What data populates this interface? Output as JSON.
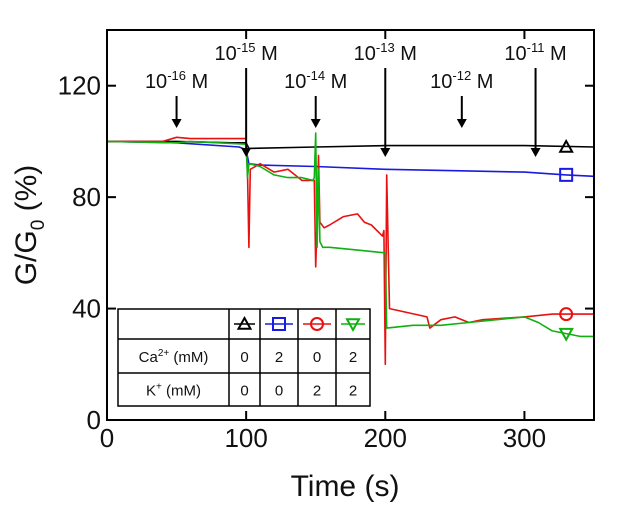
{
  "chart_data": {
    "type": "line",
    "title": "",
    "xlabel": "Time (s)",
    "ylabel_main": "G/G",
    "ylabel_sub": "0",
    "ylabel_unit": " (%)",
    "xlim": [
      0,
      350
    ],
    "ylim": [
      0,
      140
    ],
    "x_ticks": [
      0,
      100,
      200,
      300
    ],
    "y_ticks": [
      0,
      40,
      80,
      120
    ],
    "grid": false,
    "annotations": [
      {
        "base": "10",
        "exp": "-16",
        "unit": " M",
        "x": 50
      },
      {
        "base": "10",
        "exp": "-15",
        "unit": " M",
        "x": 100
      },
      {
        "base": "10",
        "exp": "-14",
        "unit": " M",
        "x": 150
      },
      {
        "base": "10",
        "exp": "-13",
        "unit": " M",
        "x": 200
      },
      {
        "base": "10",
        "exp": "-12",
        "unit": " M",
        "x": 255
      },
      {
        "base": "10",
        "exp": "-11",
        "unit": " M",
        "x": 308
      }
    ],
    "series": [
      {
        "color": "#000000",
        "marker": "triangle-up",
        "marker_x": 330,
        "x": [
          0,
          20,
          50,
          90,
          100,
          102,
          150,
          200,
          250,
          300,
          350
        ],
        "y": [
          100,
          100,
          100,
          99.5,
          99.5,
          97.5,
          98,
          98.5,
          98.5,
          98.5,
          98
        ]
      },
      {
        "color": "#1a1ae0",
        "marker": "square",
        "marker_x": 330,
        "x": [
          0,
          50,
          95,
          100,
          102,
          110,
          150,
          200,
          250,
          300,
          330,
          350
        ],
        "y": [
          100,
          99.5,
          98,
          97,
          92,
          91.5,
          91,
          90,
          89.5,
          89,
          88,
          87.5
        ]
      },
      {
        "color": "#e81010",
        "marker": "circle",
        "marker_x": 330,
        "x": [
          0,
          40,
          50,
          60,
          100,
          101,
          102,
          103,
          110,
          120,
          130,
          140,
          149,
          150,
          151,
          152,
          153,
          156,
          160,
          170,
          180,
          185,
          190,
          198,
          199,
          200,
          201,
          203,
          230,
          232,
          240,
          250,
          260,
          270,
          300,
          320,
          340,
          350
        ],
        "y": [
          100,
          100,
          101.5,
          101,
          101,
          89,
          62,
          90,
          92,
          89,
          90,
          86,
          86,
          55,
          71,
          95,
          71,
          69,
          70,
          73,
          74,
          71,
          70,
          66,
          68,
          20,
          88,
          40,
          37,
          33,
          36,
          37,
          35,
          36,
          37,
          38,
          38,
          38
        ]
      },
      {
        "color": "#10b010",
        "marker": "triangle-down",
        "marker_x": 330,
        "x": [
          0,
          50,
          60,
          100,
          101,
          102,
          110,
          120,
          130,
          140,
          148,
          149,
          150,
          151,
          152,
          153,
          155,
          160,
          180,
          200,
          201,
          220,
          240,
          260,
          280,
          300,
          310,
          320,
          330,
          340,
          350
        ],
        "y": [
          100,
          99.5,
          100,
          99,
          87,
          92,
          91,
          88,
          87,
          87,
          86,
          87,
          103,
          62,
          90,
          64,
          62,
          62,
          61,
          60,
          33,
          34,
          34,
          35,
          36,
          37,
          35,
          32,
          31,
          30,
          30
        ]
      }
    ],
    "legend_table": {
      "row_labels": [
        {
          "base": "Ca",
          "sup": "2+",
          "rest": " (mM)"
        },
        {
          "base": "K",
          "sup": "+",
          "rest": " (mM)"
        }
      ],
      "values": [
        [
          "0",
          "2",
          "0",
          "2"
        ],
        [
          "0",
          "0",
          "2",
          "2"
        ]
      ]
    }
  }
}
